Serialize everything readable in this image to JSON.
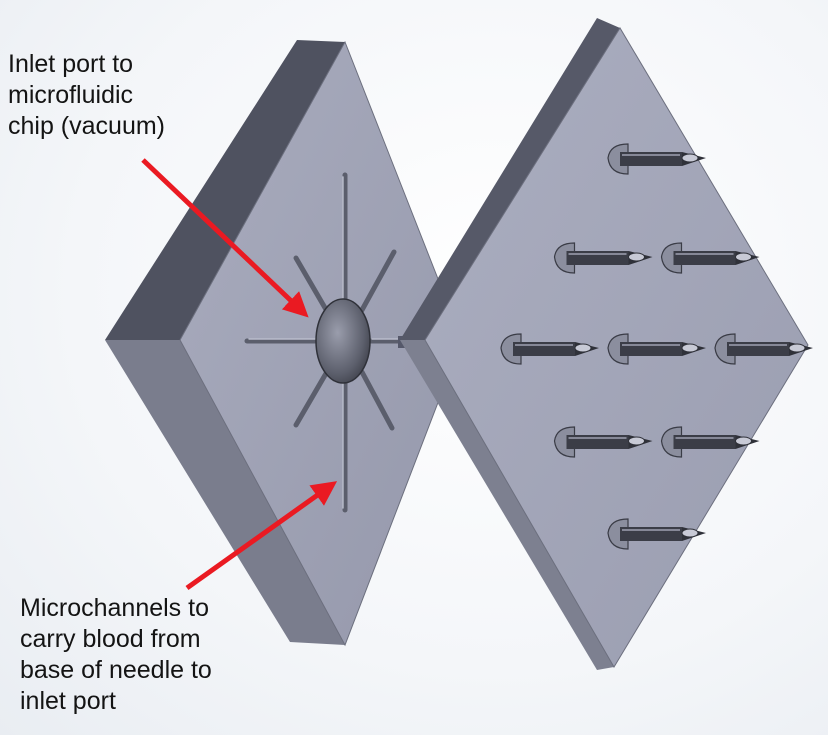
{
  "annotations": {
    "inlet_port": "Inlet port to\nmicrofluidic\nchip (vacuum)",
    "microchannels": "Microchannels to\ncarry blood from\nbase of needle to\ninlet port"
  },
  "colors": {
    "plate_face": "#a0a3b6",
    "plate_side_dark": "#4f5260",
    "plate_side_mid": "#7a7d8d",
    "channel": "#5b5e6c",
    "needle_body": "#3b3d47",
    "arrow": "#ea1a22",
    "text": "#141414"
  },
  "needles": {
    "rows": [
      1,
      2,
      3,
      2,
      1
    ]
  }
}
